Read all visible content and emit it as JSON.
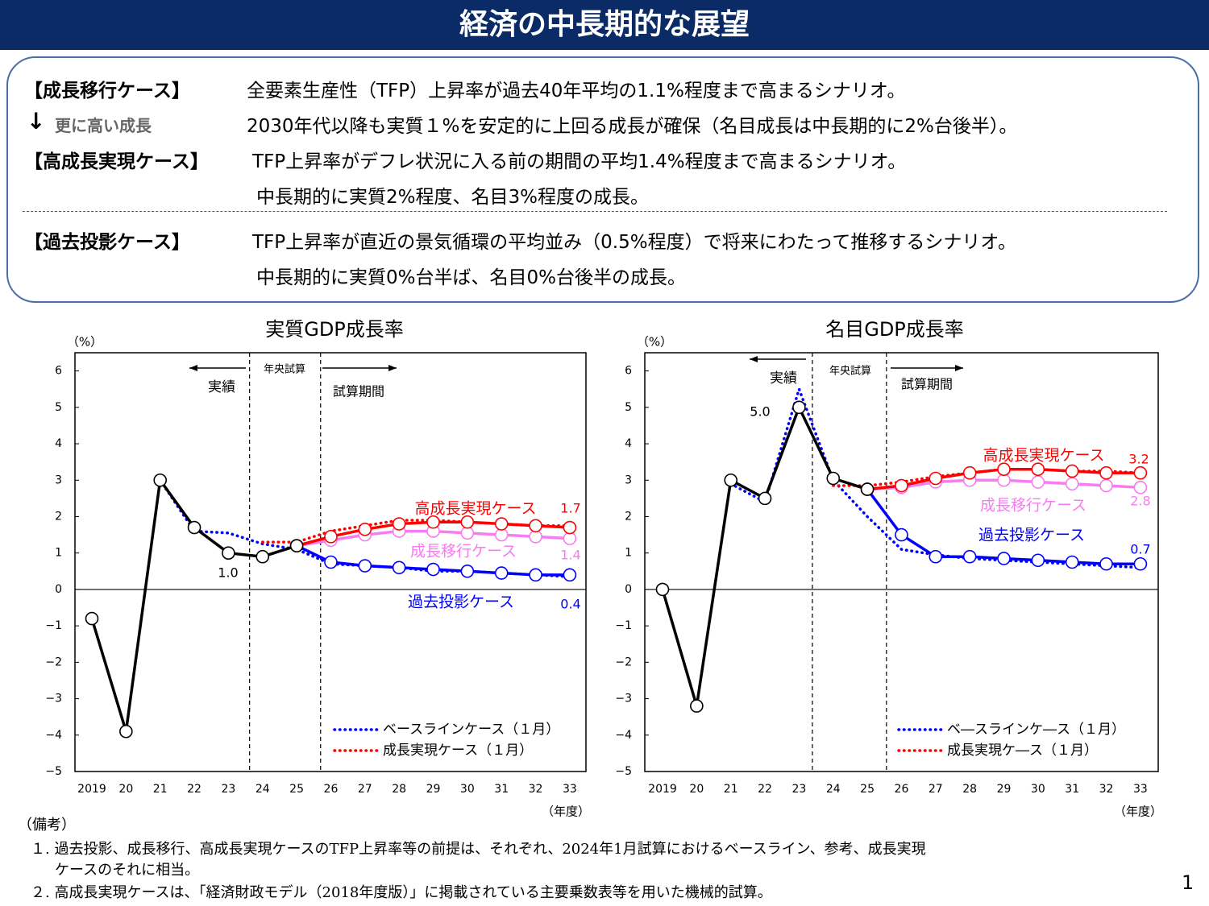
{
  "header": {
    "title": "経済の中長期的な展望"
  },
  "scenarios": [
    {
      "label": "【成長移行ケース】",
      "lines": [
        "全要素生産性（TFP）上昇率が過去40年平均の1.1%程度まで高まるシナリオ。"
      ]
    },
    {
      "label": "更に高い成長",
      "lines": [
        "2030年代以降も実質１%を安定的に上回る成長が確保（名目成長は中長期的に2%台後半）。"
      ]
    },
    {
      "label": "【高成長実現ケース】",
      "lines": [
        "TFP上昇率がデフレ状況に入る前の期間の平均1.4%程度まで高まるシナリオ。",
        "中長期的に実質2%程度、名目3%程度の成長。"
      ]
    },
    {
      "label": "【過去投影ケース】",
      "lines": [
        "TFP上昇率が直近の景気循環の平均並み（0.5%程度）で将来にわたって推移するシナリオ。",
        "中長期的に実質0%台半ば、名目0%台後半の成長。"
      ]
    }
  ],
  "chart_data": [
    {
      "type": "line",
      "title": "実質GDP成長率",
      "y_unit_label": "（%）",
      "x_unit_label": "（年度）",
      "annotations": [
        "年央試算",
        "試算期間"
      ],
      "categories": [
        "2019",
        "20",
        "21",
        "22",
        "23",
        "24",
        "25",
        "26",
        "27",
        "28",
        "29",
        "30",
        "31",
        "32",
        "33"
      ],
      "ylim": [
        -5,
        6.5
      ],
      "yticks": [
        {
          "value": -5,
          "label": "−5"
        },
        {
          "value": -4,
          "label": "−4"
        },
        {
          "value": -3,
          "label": "−3"
        },
        {
          "value": -2,
          "label": "−2"
        },
        {
          "value": -1,
          "label": "−1"
        },
        0,
        1,
        2,
        3,
        4,
        5,
        6
      ],
      "series": [
        {
          "name": "実績",
          "color": "#000000",
          "style": "solid",
          "markers": true,
          "values": [
            -0.8,
            -3.9,
            3.0,
            1.7,
            1.0,
            0.9,
            1.2,
            null,
            null,
            null,
            null,
            null,
            null,
            null,
            null
          ],
          "value_labels": [
            null,
            null,
            null,
            null,
            "1.0",
            null,
            null,
            null,
            null,
            null,
            null,
            null,
            null,
            null,
            null
          ]
        },
        {
          "name": "高成長実現ケース",
          "color": "#ff0000",
          "style": "solid",
          "markers": true,
          "values": [
            null,
            null,
            null,
            null,
            null,
            null,
            1.2,
            1.45,
            1.65,
            1.8,
            1.85,
            1.85,
            1.8,
            1.75,
            1.7
          ],
          "value_labels": [
            null,
            null,
            null,
            null,
            null,
            null,
            null,
            null,
            null,
            null,
            null,
            null,
            null,
            null,
            "1.7"
          ]
        },
        {
          "name": "成長移行ケース",
          "color": "#f77cf0",
          "style": "solid",
          "markers": true,
          "values": [
            null,
            null,
            null,
            null,
            null,
            null,
            1.2,
            1.35,
            1.5,
            1.6,
            1.6,
            1.55,
            1.5,
            1.45,
            1.4
          ],
          "value_labels": [
            null,
            null,
            null,
            null,
            null,
            null,
            null,
            null,
            null,
            null,
            null,
            null,
            null,
            null,
            "1.4"
          ]
        },
        {
          "name": "過去投影ケース",
          "color": "#0000ff",
          "style": "solid",
          "markers": true,
          "values": [
            null,
            null,
            null,
            null,
            null,
            null,
            1.2,
            0.75,
            0.65,
            0.6,
            0.55,
            0.5,
            0.45,
            0.4,
            0.4
          ],
          "value_labels": [
            null,
            null,
            null,
            null,
            null,
            null,
            null,
            null,
            null,
            null,
            null,
            null,
            null,
            null,
            "0.4"
          ]
        },
        {
          "name": "ベースラインケース（１月）",
          "color": "#0000ff",
          "style": "dotted",
          "markers": false,
          "values": [
            null,
            null,
            3.0,
            1.6,
            1.55,
            1.25,
            1.1,
            0.7,
            0.65,
            0.6,
            0.5,
            0.5,
            0.45,
            0.4,
            0.35
          ]
        },
        {
          "name": "成長実現ケース（１月）",
          "color": "#ff0000",
          "style": "dotted",
          "markers": false,
          "values": [
            null,
            null,
            null,
            null,
            null,
            1.3,
            1.3,
            1.6,
            1.75,
            1.9,
            1.9,
            1.85,
            1.8,
            1.75,
            1.75
          ]
        }
      ]
    },
    {
      "type": "line",
      "title": "名目GDP成長率",
      "y_unit_label": "（%）",
      "x_unit_label": "（年度）",
      "annotations": [
        "年央試算",
        "試算期間"
      ],
      "categories": [
        "2019",
        "20",
        "21",
        "22",
        "23",
        "24",
        "25",
        "26",
        "27",
        "28",
        "29",
        "30",
        "31",
        "32",
        "33"
      ],
      "ylim": [
        -5,
        6.5
      ],
      "yticks": [
        {
          "value": -5,
          "label": "−5"
        },
        {
          "value": -4,
          "label": "−4"
        },
        {
          "value": -3,
          "label": "−3"
        },
        {
          "value": -2,
          "label": "−2"
        },
        {
          "value": -1,
          "label": "−1"
        },
        0,
        1,
        2,
        3,
        4,
        5,
        6
      ],
      "series": [
        {
          "name": "実績",
          "color": "#000000",
          "style": "solid",
          "markers": true,
          "values": [
            0,
            -3.2,
            3.0,
            2.5,
            5.0,
            3.05,
            2.75,
            null,
            null,
            null,
            null,
            null,
            null,
            null,
            null
          ],
          "value_labels": [
            null,
            null,
            null,
            null,
            "5.0",
            null,
            null,
            null,
            null,
            null,
            null,
            null,
            null,
            null,
            null
          ]
        },
        {
          "name": "高成長実現ケース",
          "color": "#ff0000",
          "style": "solid",
          "markers": true,
          "values": [
            null,
            null,
            null,
            null,
            null,
            null,
            2.75,
            2.85,
            3.05,
            3.2,
            3.3,
            3.3,
            3.25,
            3.2,
            3.2
          ],
          "value_labels": [
            null,
            null,
            null,
            null,
            null,
            null,
            null,
            null,
            null,
            null,
            null,
            null,
            null,
            null,
            "3.2"
          ]
        },
        {
          "name": "成長移行ケース",
          "color": "#f77cf0",
          "style": "solid",
          "markers": true,
          "values": [
            null,
            null,
            null,
            null,
            null,
            null,
            2.75,
            2.8,
            2.95,
            3.0,
            3.0,
            2.95,
            2.9,
            2.85,
            2.8
          ],
          "value_labels": [
            null,
            null,
            null,
            null,
            null,
            null,
            null,
            null,
            null,
            null,
            null,
            null,
            null,
            null,
            "2.8"
          ]
        },
        {
          "name": "過去投影ケース",
          "color": "#0000ff",
          "style": "solid",
          "markers": true,
          "values": [
            null,
            null,
            null,
            null,
            null,
            null,
            2.75,
            1.5,
            0.9,
            0.9,
            0.85,
            0.8,
            0.75,
            0.7,
            0.7
          ],
          "value_labels": [
            null,
            null,
            null,
            null,
            null,
            null,
            null,
            null,
            null,
            null,
            null,
            null,
            null,
            null,
            "0.7"
          ]
        },
        {
          "name": "ベ―スラインケ―ス（１月）",
          "color": "#0000ff",
          "style": "dotted",
          "markers": false,
          "values": [
            null,
            null,
            2.9,
            2.4,
            5.5,
            3.0,
            2.0,
            1.1,
            0.95,
            0.85,
            0.8,
            0.75,
            0.7,
            0.65,
            0.6
          ]
        },
        {
          "name": "成長実現ケ―ス（１月）",
          "color": "#ff0000",
          "style": "dotted",
          "markers": false,
          "values": [
            null,
            null,
            null,
            null,
            null,
            2.85,
            2.85,
            2.95,
            3.1,
            3.2,
            3.3,
            3.3,
            3.25,
            3.25,
            3.2
          ]
        }
      ]
    }
  ],
  "notes": {
    "heading": "（備考）",
    "items": [
      "１. 過去投影、成長移行、高成長実現ケースのTFP上昇率等の前提は、それぞれ、2024年1月試算におけるベースライン、参考、成長実現",
      "ケースのそれに相当。",
      "２. 高成長実現ケースは、「経済財政モデル（2018年度版）」に掲載されている主要乗数表等を用いた機械的試算。"
    ]
  },
  "page_number": "1"
}
